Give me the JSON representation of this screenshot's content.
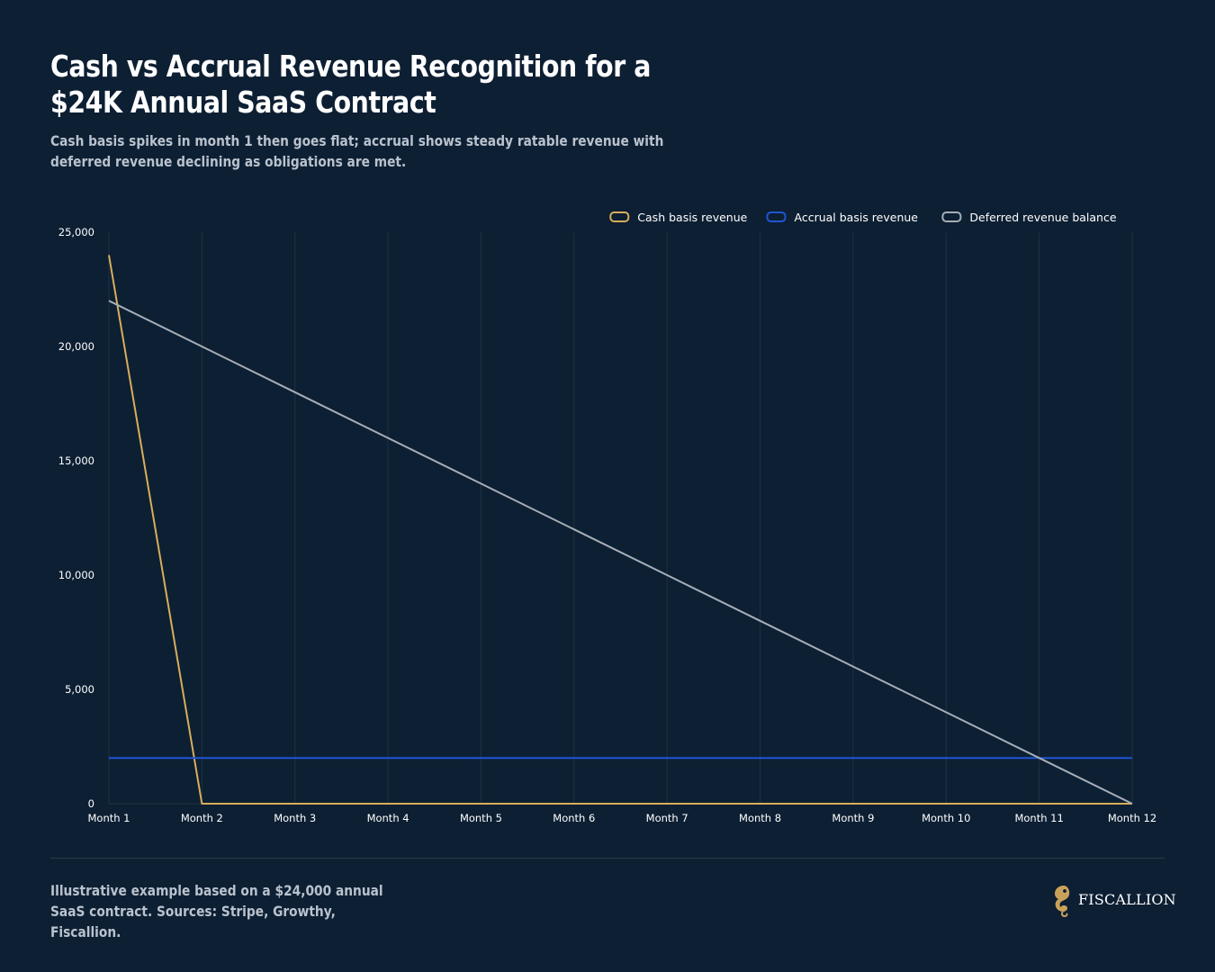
{
  "header": {
    "title": "Cash vs Accrual Revenue Recognition for a $24K Annual SaaS Contract",
    "subtitle": "Cash basis spikes in month 1 then goes flat; accrual shows steady ratable revenue with deferred revenue declining as obligations are met."
  },
  "footer": {
    "note": "Illustrative example based on a $24,000 annual SaaS contract. Sources: Stripe, Growthy, Fiscallion.",
    "brand": "FISCALLION",
    "brand_icon": "seahorse-logo-icon"
  },
  "colors": {
    "background": "#0d1f33",
    "grid": "#1f3240",
    "axis_text": "#ffffff",
    "cash": "#d9ad5b",
    "accrual": "#1f56d6",
    "deferred": "#a6aeb8",
    "brand_gold": "#c9a25a"
  },
  "chart_data": {
    "type": "line",
    "categories": [
      "Month 1",
      "Month 2",
      "Month 3",
      "Month 4",
      "Month 5",
      "Month 6",
      "Month 7",
      "Month 8",
      "Month 9",
      "Month 10",
      "Month 11",
      "Month 12"
    ],
    "series": [
      {
        "name": "Cash basis revenue",
        "color": "#d9ad5b",
        "values": [
          24000,
          0,
          0,
          0,
          0,
          0,
          0,
          0,
          0,
          0,
          0,
          0
        ]
      },
      {
        "name": "Accrual basis revenue",
        "color": "#1f56d6",
        "values": [
          2000,
          2000,
          2000,
          2000,
          2000,
          2000,
          2000,
          2000,
          2000,
          2000,
          2000,
          2000
        ]
      },
      {
        "name": "Deferred revenue balance",
        "color": "#a6aeb8",
        "values": [
          22000,
          20000,
          18000,
          16000,
          14000,
          12000,
          10000,
          8000,
          6000,
          4000,
          2000,
          0
        ]
      }
    ],
    "ylim": [
      0,
      25000
    ],
    "yticks": [
      0,
      5000,
      10000,
      15000,
      20000,
      25000
    ],
    "ytick_labels": [
      "0",
      "5,000",
      "10,000",
      "15,000",
      "20,000",
      "25,000"
    ],
    "grid": "vertical",
    "legend": "top-right",
    "title": "",
    "xlabel": "",
    "ylabel": ""
  }
}
